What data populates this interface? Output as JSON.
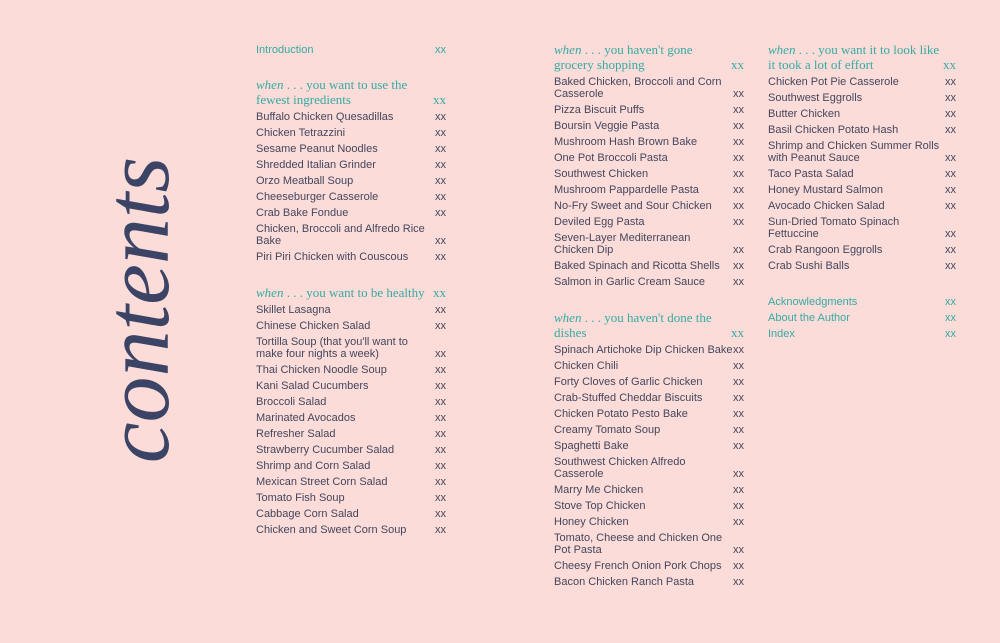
{
  "title": "contents",
  "columns": [
    {
      "front": [
        {
          "label": "Introduction",
          "page": "xx"
        }
      ],
      "sections": [
        {
          "when": "when",
          "rest": " . . . you want to use the fewest ingredients",
          "page": "xx",
          "items": [
            {
              "label": "Buffalo Chicken Quesadillas",
              "page": "xx"
            },
            {
              "label": "Chicken Tetrazzini",
              "page": "xx"
            },
            {
              "label": "Sesame Peanut Noodles",
              "page": "xx"
            },
            {
              "label": "Shredded Italian Grinder",
              "page": "xx"
            },
            {
              "label": "Orzo Meatball Soup",
              "page": "xx"
            },
            {
              "label": "Cheeseburger Casserole",
              "page": "xx"
            },
            {
              "label": "Crab Bake Fondue",
              "page": "xx"
            },
            {
              "label": "Chicken, Broccoli and Alfredo Rice Bake",
              "page": "xx"
            },
            {
              "label": "Piri Piri Chicken with Couscous",
              "page": "xx"
            }
          ]
        },
        {
          "when": "when",
          "rest": " . . . you want to be healthy",
          "page": "xx",
          "items": [
            {
              "label": "Skillet Lasagna",
              "page": "xx"
            },
            {
              "label": "Chinese Chicken Salad",
              "page": "xx"
            },
            {
              "label": "Tortilla Soup (that you'll want to make four nights a week)",
              "page": "xx"
            },
            {
              "label": "Thai Chicken Noodle Soup",
              "page": "xx"
            },
            {
              "label": "Kani Salad Cucumbers",
              "page": "xx"
            },
            {
              "label": "Broccoli Salad",
              "page": "xx"
            },
            {
              "label": "Marinated Avocados",
              "page": "xx"
            },
            {
              "label": "Refresher Salad",
              "page": "xx"
            },
            {
              "label": "Strawberry Cucumber Salad",
              "page": "xx"
            },
            {
              "label": "Shrimp and Corn Salad",
              "page": "xx"
            },
            {
              "label": "Mexican Street Corn Salad",
              "page": "xx"
            },
            {
              "label": "Tomato Fish Soup",
              "page": "xx"
            },
            {
              "label": "Cabbage Corn Salad",
              "page": "xx"
            },
            {
              "label": "Chicken and Sweet Corn Soup",
              "page": "xx"
            }
          ]
        }
      ]
    },
    {
      "front": [],
      "sections": [
        {
          "when": "when",
          "rest": " . . . you haven't gone grocery shopping",
          "page": "xx",
          "items": [
            {
              "label": "Baked Chicken, Broccoli and Corn Casserole",
              "page": "xx"
            },
            {
              "label": "Pizza Biscuit Puffs",
              "page": "xx"
            },
            {
              "label": "Boursin Veggie Pasta",
              "page": "xx"
            },
            {
              "label": "Mushroom Hash Brown Bake",
              "page": "xx"
            },
            {
              "label": "One Pot Broccoli Pasta",
              "page": "xx"
            },
            {
              "label": "Southwest Chicken",
              "page": "xx"
            },
            {
              "label": "Mushroom Pappardelle Pasta",
              "page": "xx"
            },
            {
              "label": "No-Fry Sweet and Sour Chicken",
              "page": "xx"
            },
            {
              "label": "Deviled Egg Pasta",
              "page": "xx"
            },
            {
              "label": "Seven-Layer Mediterranean Chicken Dip",
              "page": "xx"
            },
            {
              "label": "Baked Spinach and Ricotta Shells",
              "page": "xx"
            },
            {
              "label": "Salmon in Garlic Cream Sauce",
              "page": "xx"
            }
          ]
        },
        {
          "when": "when",
          "rest": " . . . you haven't done the dishes",
          "page": "xx",
          "items": [
            {
              "label": "Spinach Artichoke Dip Chicken Bake",
              "page": "xx"
            },
            {
              "label": "Chicken Chili",
              "page": "xx"
            },
            {
              "label": "Forty Cloves of Garlic Chicken",
              "page": "xx"
            },
            {
              "label": "Crab-Stuffed Cheddar Biscuits",
              "page": "xx"
            },
            {
              "label": "Chicken Potato Pesto Bake",
              "page": "xx"
            },
            {
              "label": "Creamy Tomato Soup",
              "page": "xx"
            },
            {
              "label": "Spaghetti Bake",
              "page": "xx"
            },
            {
              "label": "Southwest Chicken Alfredo Casserole",
              "page": "xx"
            },
            {
              "label": "Marry Me Chicken",
              "page": "xx"
            },
            {
              "label": "Stove Top Chicken",
              "page": "xx"
            },
            {
              "label": "Honey Chicken",
              "page": "xx"
            },
            {
              "label": "Tomato, Cheese and Chicken One Pot Pasta",
              "page": "xx"
            },
            {
              "label": "Cheesy French Onion Pork Chops",
              "page": "xx"
            },
            {
              "label": "Bacon Chicken Ranch Pasta",
              "page": "xx"
            }
          ]
        }
      ]
    },
    {
      "front": [],
      "sections": [
        {
          "when": "when",
          "rest": " . . . you want it to look like it took a lot of effort",
          "page": "xx",
          "items": [
            {
              "label": "Chicken Pot Pie Casserole",
              "page": "xx"
            },
            {
              "label": "Southwest Eggrolls",
              "page": "xx"
            },
            {
              "label": "Butter Chicken",
              "page": "xx"
            },
            {
              "label": "Basil Chicken Potato Hash",
              "page": "xx"
            },
            {
              "label": "Shrimp and Chicken Summer Rolls with Peanut Sauce",
              "page": "xx"
            },
            {
              "label": "Taco Pasta Salad",
              "page": "xx"
            },
            {
              "label": "Honey Mustard Salmon",
              "page": "xx"
            },
            {
              "label": "Avocado Chicken Salad",
              "page": "xx"
            },
            {
              "label": "Sun-Dried Tomato Spinach Fettuccine",
              "page": "xx"
            },
            {
              "label": "Crab Rangoon Eggrolls",
              "page": "xx"
            },
            {
              "label": "Crab Sushi Balls",
              "page": "xx"
            }
          ]
        }
      ],
      "back": [
        {
          "label": "Acknowledgments",
          "page": "xx"
        },
        {
          "label": "About the Author",
          "page": "xx"
        },
        {
          "label": "Index",
          "page": "xx"
        }
      ]
    }
  ],
  "colors": {
    "background": "#fbdcd9",
    "accent": "#36aaa2",
    "text": "#44465d",
    "title": "#3c4466"
  }
}
